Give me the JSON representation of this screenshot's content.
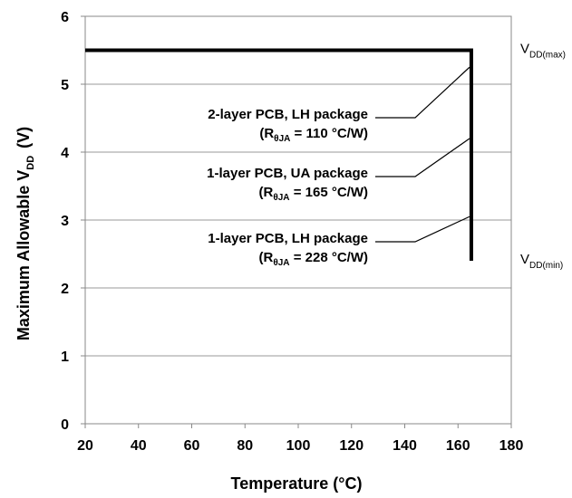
{
  "chart_data": {
    "type": "line",
    "title": "",
    "xlabel": "Temperature (°C)",
    "ylabel": {
      "main": "Maximum Allowable V",
      "sub": "DD",
      "suffix": "(V)"
    },
    "xlim": [
      20,
      180
    ],
    "ylim": [
      0,
      6
    ],
    "x_ticks": [
      "20",
      "40",
      "60",
      "80",
      "100",
      "120",
      "140",
      "160",
      "180"
    ],
    "y_ticks": [
      "0",
      "1",
      "2",
      "3",
      "4",
      "5",
      "6"
    ],
    "grid": {
      "horizontal": true,
      "vertical": false
    },
    "series": [
      {
        "points": [
          [
            20,
            5.5
          ],
          [
            165,
            5.5
          ],
          [
            165,
            2.4
          ]
        ],
        "color": "#000000"
      }
    ],
    "annotations": [
      {
        "line1": "2-layer PCB, LH package",
        "line2_main": "(R",
        "line2_sub": "θJA",
        "line2_rest": " = 110 °C/W)",
        "pointer_to": [
          165,
          5.25
        ]
      },
      {
        "line1": "1-layer PCB, UA package",
        "line2_main": "(R",
        "line2_sub": "θJA",
        "line2_rest": " = 165 °C/W)",
        "pointer_to": [
          165,
          4.2
        ]
      },
      {
        "line1": "1-layer PCB, LH package",
        "line2_main": "(R",
        "line2_sub": "θJA",
        "line2_rest": " = 228 °C/W)",
        "pointer_to": [
          165,
          3.05
        ]
      }
    ],
    "right_labels": [
      {
        "main": "V",
        "sub": "DD(max)",
        "y": 5.5
      },
      {
        "main": "V",
        "sub": "DD(min)",
        "y": 2.4
      }
    ]
  }
}
